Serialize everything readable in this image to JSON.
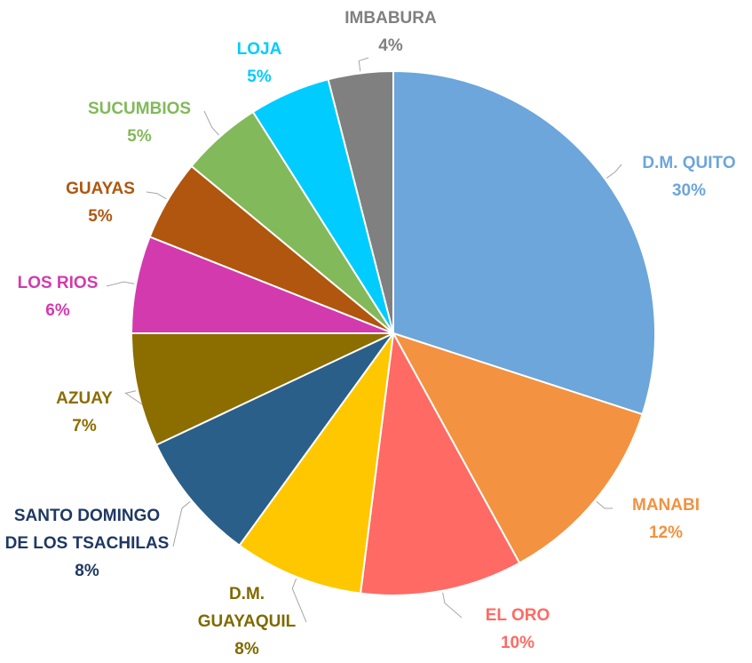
{
  "chart_data": {
    "type": "pie",
    "categories": [
      "D.M. QUITO",
      "MANABI",
      "EL ORO",
      "D.M. GUAYAQUIL",
      "SANTO DOMINGO DE LOS TSACHILAS",
      "AZUAY",
      "LOS RIOS",
      "GUAYAS",
      "SUCUMBIOS",
      "LOJA",
      "IMBABURA"
    ],
    "values": [
      30,
      12,
      10,
      8,
      8,
      7,
      6,
      5,
      5,
      5,
      4
    ],
    "value_labels": [
      "30%",
      "12%",
      "10%",
      "8%",
      "8%",
      "7%",
      "6%",
      "5%",
      "5%",
      "5%",
      "4%"
    ],
    "colors": [
      "#6CA6DA",
      "#F39240",
      "#FF6A64",
      "#FFC700",
      "#2A5F8A",
      "#8C6D00",
      "#D33AAE",
      "#B0560E",
      "#82B95A",
      "#00CCFF",
      "#808080"
    ]
  }
}
